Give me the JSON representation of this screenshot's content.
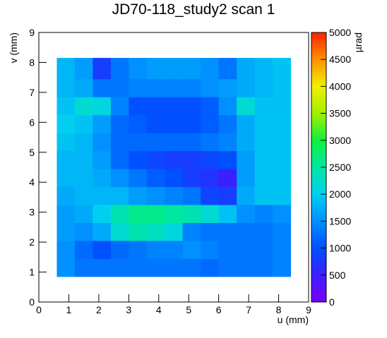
{
  "chart_data": {
    "type": "heatmap",
    "title": "JD70-118_study2 scan 1",
    "x_label": "u (mm)",
    "y_label": "v (mm)",
    "colorbar_label": "µrad",
    "xlim": [
      0,
      9
    ],
    "ylim": [
      0,
      9
    ],
    "zlim": [
      0,
      5000
    ],
    "xticks": [
      0,
      1,
      2,
      3,
      4,
      5,
      6,
      7,
      8,
      9
    ],
    "yticks": [
      0,
      1,
      2,
      3,
      4,
      5,
      6,
      7,
      8,
      9
    ],
    "zticks": [
      0,
      500,
      1000,
      1500,
      2000,
      2500,
      3000,
      3500,
      4000,
      4500,
      5000
    ],
    "palette": [
      "#7a00ff",
      "#3a20ff",
      "#0050ff",
      "#0090ff",
      "#00d0f0",
      "#00e8a0",
      "#10f040",
      "#a0f000",
      "#f0f000",
      "#ff9000",
      "#ff2000"
    ],
    "xbins": [
      0.6,
      1.2,
      1.8,
      2.4,
      3.0,
      3.6,
      4.2,
      4.8,
      5.4,
      6.0,
      6.6,
      7.2,
      7.8,
      8.4
    ],
    "ybins": [
      0.85,
      1.45,
      2.05,
      2.65,
      3.25,
      3.85,
      4.45,
      5.05,
      5.65,
      6.25,
      6.85,
      7.45,
      8.15
    ],
    "z": [
      [
        1500,
        1300,
        1300,
        1300,
        1300,
        1300,
        1300,
        1300,
        1200,
        1300,
        1300,
        1300,
        1400
      ],
      [
        1500,
        1200,
        1000,
        1200,
        1300,
        1400,
        1400,
        1500,
        1400,
        1300,
        1300,
        1300,
        1400
      ],
      [
        1600,
        1500,
        1700,
        2200,
        2400,
        2300,
        2100,
        1400,
        1300,
        1300,
        1300,
        1300,
        1400
      ],
      [
        1600,
        1700,
        2000,
        2400,
        2600,
        2600,
        2500,
        2400,
        2200,
        1900,
        1500,
        1400,
        1500
      ],
      [
        1700,
        1800,
        1800,
        1800,
        1600,
        1500,
        1400,
        1300,
        900,
        800,
        1700,
        1900,
        1900
      ],
      [
        1800,
        1800,
        1700,
        1500,
        1300,
        1100,
        1000,
        800,
        700,
        500,
        1600,
        1900,
        1900
      ],
      [
        1800,
        1800,
        1600,
        1200,
        1000,
        900,
        800,
        800,
        900,
        1000,
        1600,
        1900,
        1900
      ],
      [
        1900,
        1800,
        1500,
        1200,
        1200,
        1200,
        1200,
        1200,
        1300,
        1400,
        1700,
        1900,
        1900
      ],
      [
        2000,
        1900,
        1600,
        1200,
        1100,
        1000,
        1000,
        1000,
        1100,
        1300,
        1700,
        1900,
        1900
      ],
      [
        1900,
        2200,
        2100,
        1400,
        1000,
        1000,
        1000,
        1000,
        1100,
        1500,
        2200,
        1900,
        1900
      ],
      [
        1800,
        1700,
        1300,
        1300,
        1400,
        1400,
        1400,
        1400,
        1500,
        1600,
        1700,
        1800,
        1900
      ],
      [
        1800,
        1600,
        800,
        1300,
        1500,
        1600,
        1600,
        1600,
        1500,
        1300,
        1700,
        1800,
        1900
      ]
    ]
  }
}
